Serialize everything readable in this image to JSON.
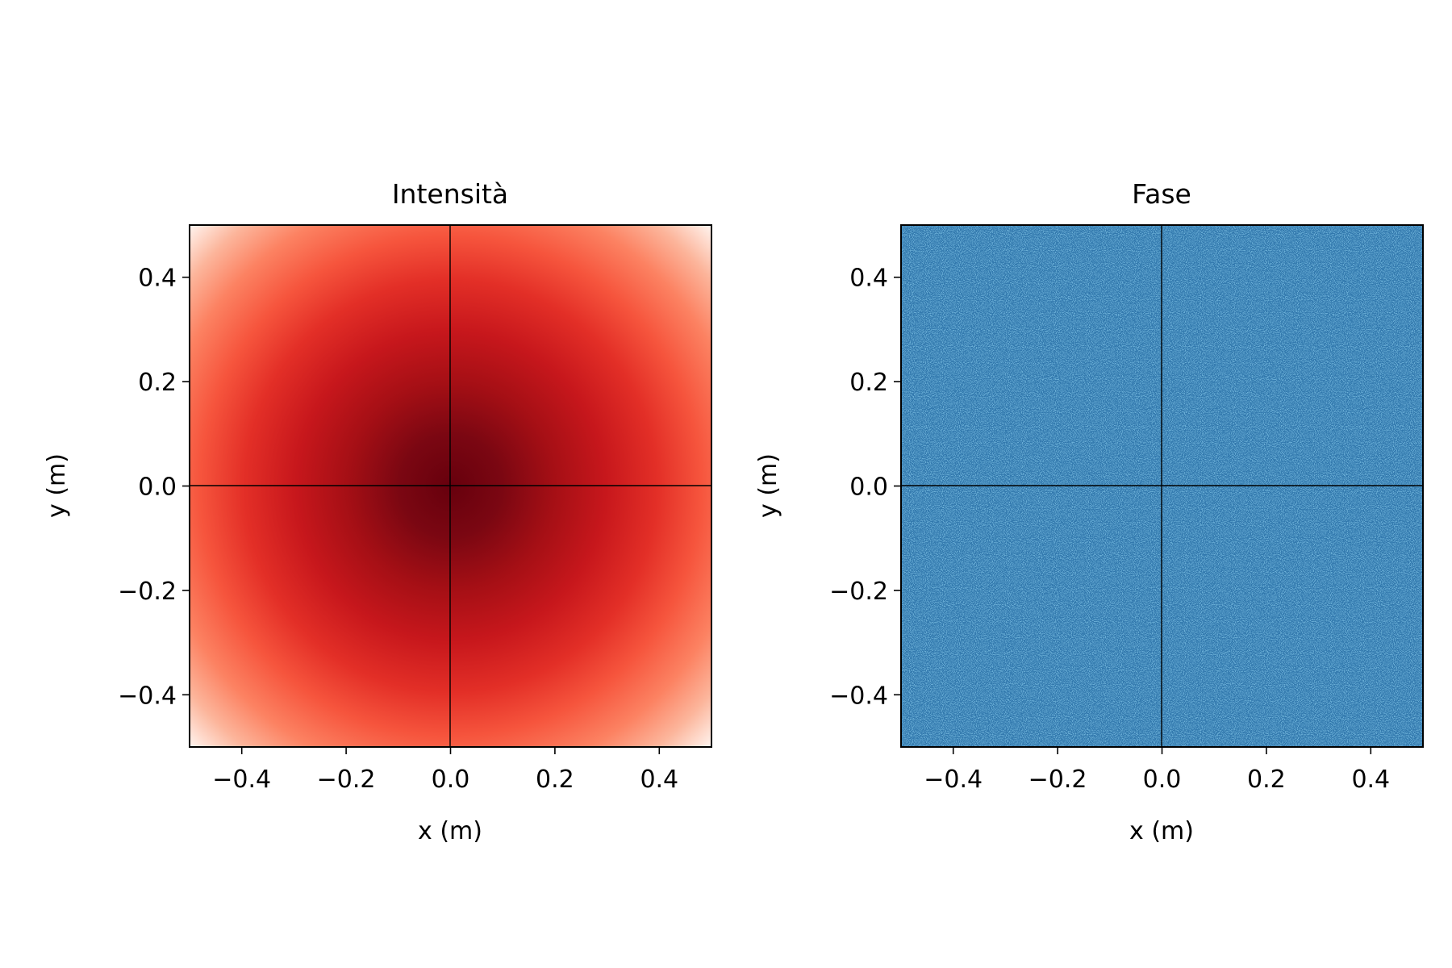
{
  "chart_data": [
    {
      "type": "heatmap",
      "title": "Intensità",
      "xlabel": "x (m)",
      "ylabel": "y (m)",
      "xlim": [
        -0.5,
        0.5
      ],
      "ylim": [
        -0.5,
        0.5
      ],
      "xticks": [
        -0.4,
        -0.2,
        0.0,
        0.2,
        0.4
      ],
      "yticks": [
        -0.4,
        -0.2,
        0.0,
        0.2,
        0.4
      ],
      "xtick_labels": [
        "−0.4",
        "−0.2",
        "0.0",
        "0.2",
        "0.4"
      ],
      "ytick_labels": [
        "−0.4",
        "−0.2",
        "0.0",
        "0.2",
        "0.4"
      ],
      "colormap": "Reds",
      "field": "gaussian intensity, maximum at center (0, 0), decreasing toward the corners",
      "reference_lines": {
        "x": 0.0,
        "y": 0.0
      },
      "grid": false
    },
    {
      "type": "heatmap",
      "title": "Fase",
      "xlabel": "x (m)",
      "ylabel": "y (m)",
      "xlim": [
        -0.5,
        0.5
      ],
      "ylim": [
        -0.5,
        0.5
      ],
      "xticks": [
        -0.4,
        -0.2,
        0.0,
        0.2,
        0.4
      ],
      "yticks": [
        -0.4,
        -0.2,
        0.0,
        0.2,
        0.4
      ],
      "xtick_labels": [
        "−0.4",
        "−0.2",
        "0.0",
        "0.2",
        "0.4"
      ],
      "ytick_labels": [
        "−0.4",
        "−0.2",
        "0.0",
        "0.2",
        "0.4"
      ],
      "colormap": "Blues",
      "field": "nearly uniform phase with sparse dark and light speckle noise",
      "base_color": "#6aaed6",
      "reference_lines": {
        "x": 0.0,
        "y": 0.0
      },
      "grid": false
    }
  ]
}
